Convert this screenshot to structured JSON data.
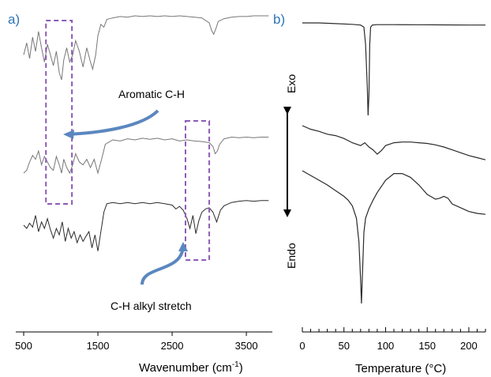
{
  "colors": {
    "panel_label": "#2e75b6",
    "trace": "#2a2a2a",
    "trace_light": "#777777",
    "highlight_box": "#8c5bb5",
    "arrow": "#5b87bf"
  },
  "chart_data": [
    {
      "panel_label": "a)",
      "type": "line",
      "title": "",
      "xlabel": "Wavenumber (cm",
      "xlabel_sup": "-1",
      "xlabel_close": ")",
      "ylabel": "",
      "xlim": [
        500,
        3850
      ],
      "xticks": [
        500,
        1500,
        2500,
        3500
      ],
      "xtick_labels": [
        "500",
        "1500",
        "2500",
        "3500"
      ],
      "grid": false,
      "annotations": [
        {
          "text": "Aromatic C-H",
          "box_x": [
            800,
            1150
          ]
        },
        {
          "text": "C-H alkyl stretch",
          "box_x": [
            2680,
            3000
          ]
        }
      ],
      "series": [
        {
          "x": [
            500,
            540,
            580,
            620,
            660,
            700,
            740,
            780,
            820,
            860,
            900,
            940,
            980,
            1010,
            1040,
            1080,
            1120,
            1160,
            1200,
            1250,
            1300,
            1350,
            1400,
            1430,
            1470,
            1500,
            1540,
            1580,
            1620,
            1700,
            1800,
            1900,
            2000,
            2100,
            2200,
            2300,
            2400,
            2500,
            2600,
            2700,
            2800,
            2900,
            3000,
            3030,
            3060,
            3090,
            3120,
            3200,
            3300,
            3400,
            3500,
            3600,
            3700,
            3800
          ],
          "y": [
            0.45,
            0.62,
            0.4,
            0.7,
            0.5,
            0.78,
            0.55,
            0.35,
            0.6,
            0.45,
            0.3,
            0.5,
            0.2,
            0.1,
            0.38,
            0.55,
            0.35,
            0.45,
            0.65,
            0.5,
            0.28,
            0.55,
            0.35,
            0.25,
            0.45,
            0.72,
            0.88,
            0.84,
            0.95,
            0.97,
            0.99,
            0.98,
            1.0,
            0.99,
            1.0,
            0.99,
            1.0,
            0.99,
            1.0,
            0.99,
            0.98,
            0.97,
            0.9,
            0.8,
            0.74,
            0.82,
            0.92,
            0.96,
            0.98,
            0.99,
            0.99,
            1.0,
            1.0,
            1.0
          ]
        },
        {
          "x": [
            500,
            540,
            580,
            620,
            660,
            700,
            740,
            780,
            820,
            860,
            900,
            940,
            980,
            1010,
            1040,
            1080,
            1120,
            1160,
            1200,
            1250,
            1300,
            1350,
            1400,
            1450,
            1500,
            1550,
            1600,
            1700,
            1800,
            1900,
            2000,
            2100,
            2200,
            2300,
            2400,
            2500,
            2600,
            2700,
            2800,
            2900,
            3000,
            3050,
            3080,
            3110,
            3140,
            3200,
            3300,
            3400,
            3500,
            3600,
            3700,
            3800
          ],
          "y": [
            0.3,
            0.35,
            0.5,
            0.62,
            0.55,
            0.7,
            0.45,
            0.6,
            0.5,
            0.4,
            0.35,
            0.6,
            0.45,
            0.3,
            0.55,
            0.4,
            0.3,
            0.45,
            0.65,
            0.5,
            0.45,
            0.55,
            0.4,
            0.55,
            0.3,
            0.55,
            0.82,
            0.9,
            0.88,
            0.92,
            0.9,
            0.93,
            0.91,
            0.93,
            0.9,
            0.92,
            0.88,
            0.9,
            0.88,
            0.87,
            0.85,
            0.78,
            0.65,
            0.7,
            0.82,
            0.92,
            0.95,
            0.94,
            0.95,
            0.94,
            0.95,
            0.95
          ]
        },
        {
          "x": [
            500,
            540,
            580,
            620,
            660,
            700,
            740,
            780,
            820,
            860,
            900,
            940,
            980,
            1020,
            1060,
            1100,
            1140,
            1180,
            1220,
            1260,
            1300,
            1340,
            1380,
            1420,
            1460,
            1500,
            1540,
            1580,
            1620,
            1700,
            1800,
            1900,
            2000,
            2100,
            2200,
            2300,
            2400,
            2500,
            2550,
            2600,
            2650,
            2700,
            2740,
            2780,
            2820,
            2860,
            2900,
            2950,
            3000,
            3050,
            3100,
            3150,
            3200,
            3300,
            3400,
            3500,
            3600,
            3700,
            3800
          ],
          "y": [
            0.55,
            0.5,
            0.58,
            0.52,
            0.7,
            0.45,
            0.6,
            0.5,
            0.65,
            0.48,
            0.35,
            0.5,
            0.4,
            0.6,
            0.3,
            0.5,
            0.35,
            0.45,
            0.28,
            0.4,
            0.3,
            0.38,
            0.45,
            0.2,
            0.4,
            0.15,
            0.45,
            0.75,
            0.88,
            0.9,
            0.88,
            0.9,
            0.88,
            0.9,
            0.88,
            0.9,
            0.88,
            0.86,
            0.8,
            0.84,
            0.78,
            0.65,
            0.5,
            0.7,
            0.42,
            0.62,
            0.75,
            0.8,
            0.82,
            0.75,
            0.6,
            0.78,
            0.85,
            0.9,
            0.92,
            0.93,
            0.92,
            0.93,
            0.93
          ]
        }
      ]
    },
    {
      "panel_label": "b)",
      "type": "line",
      "title": "",
      "xlabel": "Temperature (°C)",
      "ylabel": "",
      "xlim": [
        0,
        220
      ],
      "xticks": [
        0,
        50,
        100,
        150,
        200
      ],
      "xtick_labels": [
        "0",
        "50",
        "100",
        "150",
        "200"
      ],
      "grid": false,
      "direction_labels": {
        "top": "Exo",
        "bottom": "Endo"
      },
      "series": [
        {
          "x": [
            0,
            20,
            40,
            60,
            70,
            74,
            76,
            78,
            79,
            80,
            81,
            82,
            84,
            90,
            110,
            140,
            170,
            200,
            220
          ],
          "y": [
            0.95,
            0.95,
            0.945,
            0.94,
            0.935,
            0.92,
            0.8,
            0.5,
            0.3,
            0.45,
            0.8,
            0.92,
            0.935,
            0.938,
            0.938,
            0.937,
            0.936,
            0.935,
            0.935
          ]
        },
        {
          "x": [
            0,
            10,
            20,
            30,
            40,
            50,
            60,
            70,
            75,
            80,
            85,
            90,
            95,
            100,
            110,
            120,
            130,
            140,
            150,
            160,
            170,
            180,
            190,
            200,
            210,
            220
          ],
          "y": [
            0.9,
            0.85,
            0.82,
            0.78,
            0.76,
            0.72,
            0.66,
            0.62,
            0.66,
            0.6,
            0.56,
            0.5,
            0.55,
            0.62,
            0.66,
            0.67,
            0.67,
            0.66,
            0.65,
            0.63,
            0.6,
            0.56,
            0.52,
            0.48,
            0.45,
            0.42
          ]
        },
        {
          "x": [
            0,
            10,
            20,
            30,
            40,
            50,
            55,
            60,
            65,
            68,
            70,
            71,
            72,
            74,
            76,
            80,
            85,
            90,
            100,
            110,
            120,
            130,
            140,
            150,
            160,
            165,
            170,
            175,
            180,
            190,
            200,
            210,
            220
          ],
          "y": [
            0.95,
            0.9,
            0.85,
            0.8,
            0.74,
            0.68,
            0.64,
            0.58,
            0.45,
            0.2,
            -0.2,
            -0.45,
            -0.2,
            0.3,
            0.45,
            0.55,
            0.64,
            0.72,
            0.85,
            0.92,
            0.92,
            0.88,
            0.8,
            0.7,
            0.65,
            0.66,
            0.68,
            0.66,
            0.6,
            0.56,
            0.52,
            0.5,
            0.49
          ]
        }
      ]
    }
  ]
}
